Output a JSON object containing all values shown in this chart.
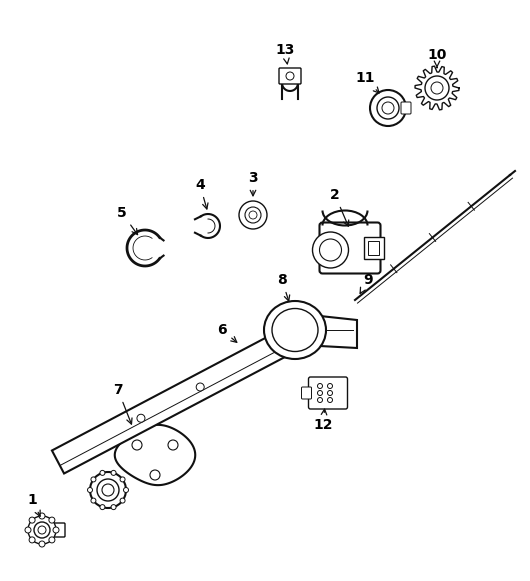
{
  "background_color": "#ffffff",
  "line_color": "#111111",
  "label_color": "#000000",
  "fig_width": 5.3,
  "fig_height": 5.81,
  "dpi": 100
}
